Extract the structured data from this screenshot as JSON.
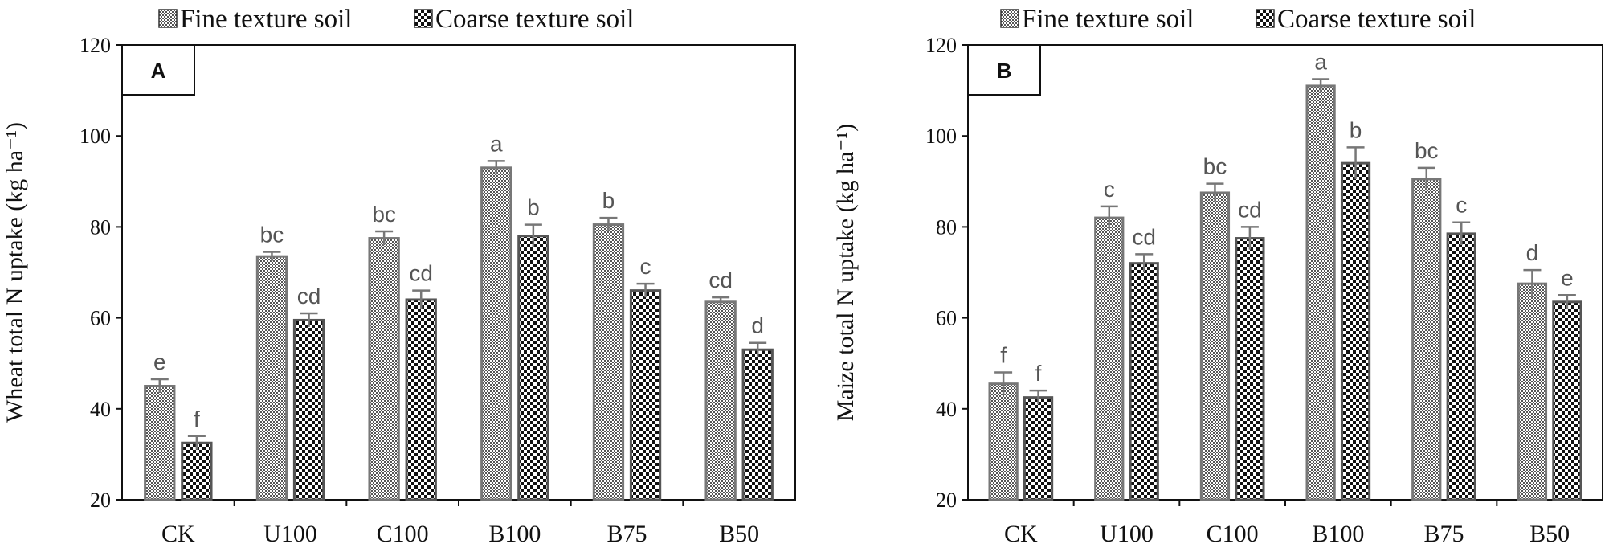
{
  "chart_data": [
    {
      "type": "bar",
      "panel_label": "A",
      "ylabel": "Wheat total N uptake (kg ha⁻¹)",
      "xlabel": "",
      "ylim": [
        20,
        120
      ],
      "yticks": [
        20,
        40,
        60,
        80,
        100,
        120
      ],
      "categories": [
        "CK",
        "U100",
        "C100",
        "B100",
        "B75",
        "B50"
      ],
      "legend_position": "top",
      "series": [
        {
          "name": "Fine texture soil",
          "values": [
            45,
            73.5,
            77.5,
            93,
            80.5,
            63.5
          ],
          "errors": [
            1.5,
            1.0,
            1.5,
            1.5,
            1.5,
            1.0
          ],
          "letters": [
            "e",
            "bc",
            "bc",
            "a",
            "b",
            "cd"
          ]
        },
        {
          "name": "Coarse texture soil",
          "values": [
            32.5,
            59.5,
            64,
            78,
            66,
            53
          ],
          "errors": [
            1.5,
            1.5,
            2.0,
            2.5,
            1.5,
            1.5
          ],
          "letters": [
            "f",
            "cd",
            "cd",
            "b",
            "c",
            "d"
          ]
        }
      ]
    },
    {
      "type": "bar",
      "panel_label": "B",
      "ylabel": "Maize total N uptake (kg ha⁻¹)",
      "xlabel": "",
      "ylim": [
        20,
        120
      ],
      "yticks": [
        20,
        40,
        60,
        80,
        100,
        120
      ],
      "categories": [
        "CK",
        "U100",
        "C100",
        "B100",
        "B75",
        "B50"
      ],
      "legend_position": "top",
      "series": [
        {
          "name": "Fine texture soil",
          "values": [
            45.5,
            82,
            87.5,
            111,
            90.5,
            67.5
          ],
          "errors": [
            2.5,
            2.5,
            2.0,
            1.5,
            2.5,
            3.0
          ],
          "letters": [
            "f",
            "c",
            "bc",
            "a",
            "bc",
            "d"
          ]
        },
        {
          "name": "Coarse texture soil",
          "values": [
            42.5,
            72,
            77.5,
            94,
            78.5,
            63.5
          ],
          "errors": [
            1.5,
            2.0,
            2.5,
            3.5,
            2.5,
            1.5
          ],
          "letters": [
            "f",
            "cd",
            "cd",
            "b",
            "c",
            "e"
          ]
        }
      ]
    }
  ]
}
